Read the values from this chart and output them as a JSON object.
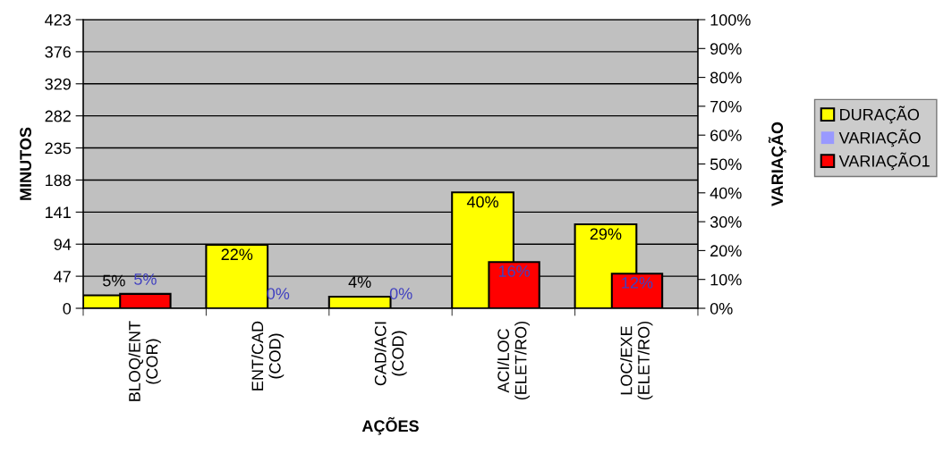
{
  "chart_data": {
    "type": "bar",
    "xlabel": "AÇÕES",
    "ylabel": "MINUTOS",
    "y2label": "VARIAÇÃO",
    "categories": [
      "BLOQ/ENT\n(COR)",
      "ENT/CAD\n(COD)",
      "CAD/ACI\n(COD)",
      "ACI/LOC\n(ELET/RO)",
      "LOC/EXE\n(ELET/RO)"
    ],
    "series": [
      {
        "name": "DURAÇÃO",
        "color": "#ffff00",
        "values": [
          19,
          93,
          17,
          170,
          123
        ]
      },
      {
        "name": "VARIAÇÃO",
        "color": "#9999ff",
        "values": [
          null,
          null,
          null,
          null,
          null
        ]
      },
      {
        "name": "VARIAÇÃO1",
        "color": "#ff0000",
        "axis": "y2",
        "values": [
          5,
          0,
          0,
          16,
          12
        ],
        "value_labels": [
          "5%",
          "0%",
          "0%",
          "16%",
          "12%"
        ]
      }
    ],
    "annotations": [
      {
        "text": "5%",
        "x": "BLOQ/ENT\n(COR)",
        "y": 19
      },
      {
        "text": "22%",
        "x": "ENT/CAD\n(COD)",
        "y": 93
      },
      {
        "text": "4%",
        "x": "CAD/ACI\n(COD)",
        "y": 17
      },
      {
        "text": "40%",
        "x": "ACI/LOC\n(ELET/RO)",
        "y": 170
      },
      {
        "text": "29%",
        "x": "LOC/EXE\n(ELET/RO)",
        "y": 123
      }
    ],
    "ylim": [
      0,
      423
    ],
    "yticks": [
      0,
      47,
      94,
      141,
      188,
      235,
      282,
      329,
      376,
      423
    ],
    "y2lim": [
      0,
      100
    ],
    "y2ticks": [
      {
        "value": 0,
        "label": "0%"
      },
      {
        "value": 10,
        "label": "10%"
      },
      {
        "value": 20,
        "label": "20%"
      },
      {
        "value": 30,
        "label": "30%"
      },
      {
        "value": 40,
        "label": "40%"
      },
      {
        "value": 50,
        "label": "50%"
      },
      {
        "value": 60,
        "label": "60%"
      },
      {
        "value": 70,
        "label": "70%"
      },
      {
        "value": 80,
        "label": "80%"
      },
      {
        "value": 90,
        "label": "90%"
      },
      {
        "value": 100,
        "label": "100%"
      }
    ],
    "grid": "y",
    "legend": "right"
  }
}
